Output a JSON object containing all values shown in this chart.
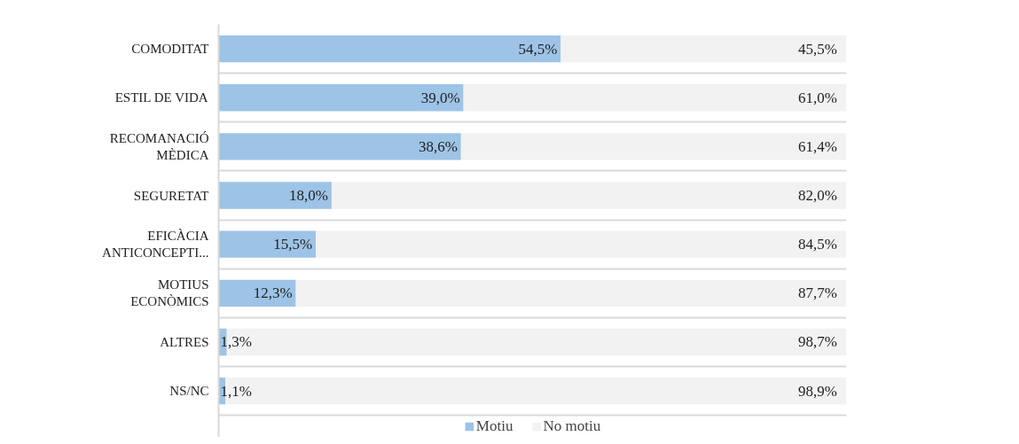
{
  "chart_data": {
    "type": "bar",
    "orientation": "horizontal",
    "stacked": true,
    "grid": "y",
    "legend": "bottom",
    "tick_labels": "y",
    "categories": [
      "COMODITAT",
      "ESTIL DE VIDA",
      "RECOMANACIÓ\nMÈDICA",
      "SEGURETAT",
      "EFICÀCIA\nANTICONCEPTI...",
      "MOTIUS\nECONÒMICS",
      "ALTRES",
      "NS/NC"
    ],
    "xlim": [
      0,
      100
    ],
    "series": [
      {
        "name": "Motiu",
        "color": "#9dc3e6",
        "values": [
          54.5,
          39.0,
          38.6,
          18.0,
          15.5,
          12.3,
          1.3,
          1.1
        ],
        "value_labels": [
          "54,5%",
          "39,0%",
          "38,6%",
          "18,0%",
          "15,5%",
          "12,3%",
          "1,3%",
          "1,1%"
        ]
      },
      {
        "name": "No motiu",
        "color": "#f2f2f2",
        "values": [
          45.5,
          61.0,
          61.4,
          82.0,
          84.5,
          87.7,
          98.7,
          98.9
        ],
        "value_labels": [
          "45,5%",
          "61,0%",
          "61,4%",
          "82,0%",
          "84,5%",
          "87,7%",
          "98,7%",
          "98,9%"
        ]
      }
    ]
  }
}
